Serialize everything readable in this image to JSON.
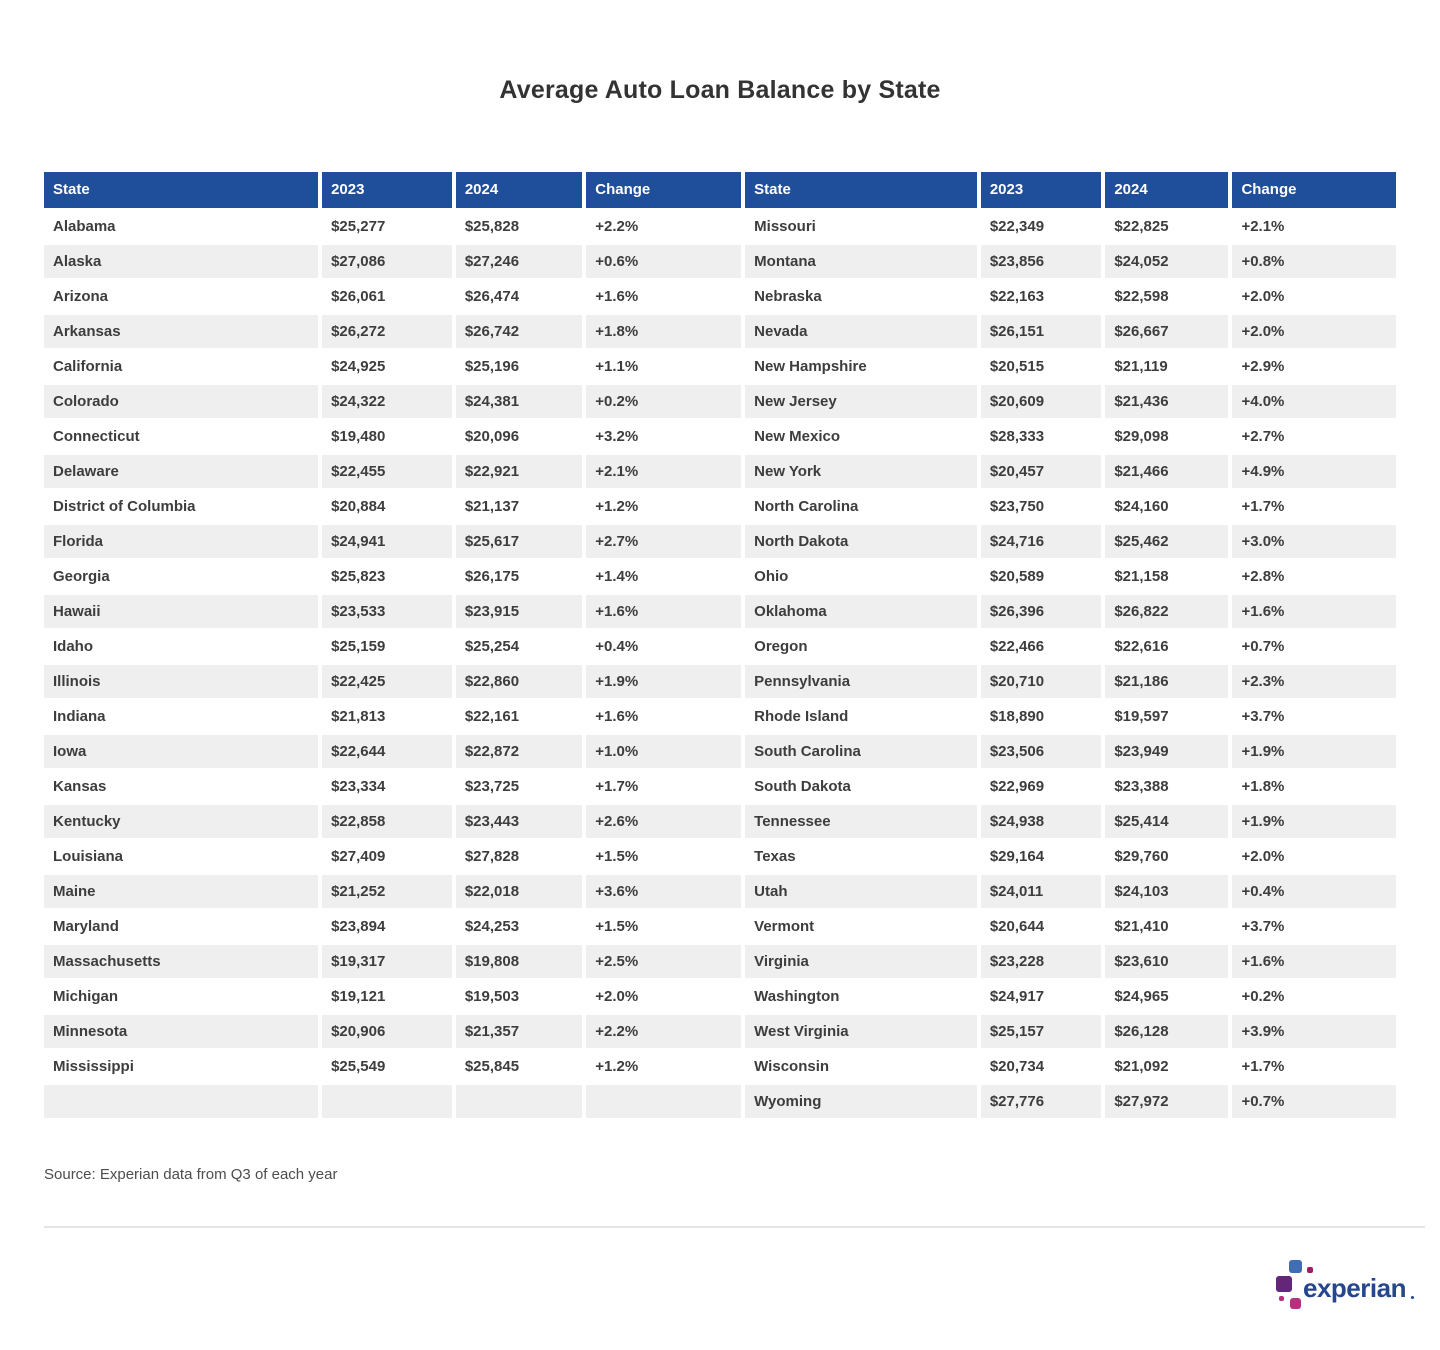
{
  "logo": {
    "wordmark": "experian"
  },
  "colors": {
    "header_bg": "#1F4E9A",
    "header_text": "#FFFFFF",
    "row_alt_bg": "#EFEFEF",
    "body_text": "#3D3D3D",
    "title_text": "#333333",
    "source_text": "#4D4D4D",
    "divider": "#E5E5E5",
    "logo_blue": "#26478D",
    "logo_lightblue": "#406EB3",
    "logo_purple": "#632678",
    "logo_magenta": "#BA2F7D",
    "logo_crimson": "#9E1F63"
  },
  "chart_data": {
    "type": "table",
    "title": "Average Auto Loan Balance by State",
    "source": "Source: Experian data from Q3 of each year",
    "columns": [
      "State",
      "2023",
      "2024",
      "Change"
    ],
    "left_rows": [
      [
        "Alabama",
        "$25,277",
        "$25,828",
        "+2.2%"
      ],
      [
        "Alaska",
        "$27,086",
        "$27,246",
        "+0.6%"
      ],
      [
        "Arizona",
        "$26,061",
        "$26,474",
        "+1.6%"
      ],
      [
        "Arkansas",
        "$26,272",
        "$26,742",
        "+1.8%"
      ],
      [
        "California",
        "$24,925",
        "$25,196",
        "+1.1%"
      ],
      [
        "Colorado",
        "$24,322",
        "$24,381",
        "+0.2%"
      ],
      [
        "Connecticut",
        "$19,480",
        "$20,096",
        "+3.2%"
      ],
      [
        "Delaware",
        "$22,455",
        "$22,921",
        "+2.1%"
      ],
      [
        "District of Columbia",
        "$20,884",
        "$21,137",
        "+1.2%"
      ],
      [
        "Florida",
        "$24,941",
        "$25,617",
        "+2.7%"
      ],
      [
        "Georgia",
        "$25,823",
        "$26,175",
        "+1.4%"
      ],
      [
        "Hawaii",
        "$23,533",
        "$23,915",
        "+1.6%"
      ],
      [
        "Idaho",
        "$25,159",
        "$25,254",
        "+0.4%"
      ],
      [
        "Illinois",
        "$22,425",
        "$22,860",
        "+1.9%"
      ],
      [
        "Indiana",
        "$21,813",
        "$22,161",
        "+1.6%"
      ],
      [
        "Iowa",
        "$22,644",
        "$22,872",
        "+1.0%"
      ],
      [
        "Kansas",
        "$23,334",
        "$23,725",
        "+1.7%"
      ],
      [
        "Kentucky",
        "$22,858",
        "$23,443",
        "+2.6%"
      ],
      [
        "Louisiana",
        "$27,409",
        "$27,828",
        "+1.5%"
      ],
      [
        "Maine",
        "$21,252",
        "$22,018",
        "+3.6%"
      ],
      [
        "Maryland",
        "$23,894",
        "$24,253",
        "+1.5%"
      ],
      [
        "Massachusetts",
        "$19,317",
        "$19,808",
        "+2.5%"
      ],
      [
        "Michigan",
        "$19,121",
        "$19,503",
        "+2.0%"
      ],
      [
        "Minnesota",
        "$20,906",
        "$21,357",
        "+2.2%"
      ],
      [
        "Mississippi",
        "$25,549",
        "$25,845",
        "+1.2%"
      ]
    ],
    "right_rows": [
      [
        "Missouri",
        "$22,349",
        "$22,825",
        "+2.1%"
      ],
      [
        "Montana",
        "$23,856",
        "$24,052",
        "+0.8%"
      ],
      [
        "Nebraska",
        "$22,163",
        "$22,598",
        "+2.0%"
      ],
      [
        "Nevada",
        "$26,151",
        "$26,667",
        "+2.0%"
      ],
      [
        "New Hampshire",
        "$20,515",
        "$21,119",
        "+2.9%"
      ],
      [
        "New Jersey",
        "$20,609",
        "$21,436",
        "+4.0%"
      ],
      [
        "New Mexico",
        "$28,333",
        "$29,098",
        "+2.7%"
      ],
      [
        "New York",
        "$20,457",
        "$21,466",
        "+4.9%"
      ],
      [
        "North Carolina",
        "$23,750",
        "$24,160",
        "+1.7%"
      ],
      [
        "North Dakota",
        "$24,716",
        "$25,462",
        "+3.0%"
      ],
      [
        "Ohio",
        "$20,589",
        "$21,158",
        "+2.8%"
      ],
      [
        "Oklahoma",
        "$26,396",
        "$26,822",
        "+1.6%"
      ],
      [
        "Oregon",
        "$22,466",
        "$22,616",
        "+0.7%"
      ],
      [
        "Pennsylvania",
        "$20,710",
        "$21,186",
        "+2.3%"
      ],
      [
        "Rhode Island",
        "$18,890",
        "$19,597",
        "+3.7%"
      ],
      [
        "South Carolina",
        "$23,506",
        "$23,949",
        "+1.9%"
      ],
      [
        "South Dakota",
        "$22,969",
        "$23,388",
        "+1.8%"
      ],
      [
        "Tennessee",
        "$24,938",
        "$25,414",
        "+1.9%"
      ],
      [
        "Texas",
        "$29,164",
        "$29,760",
        "+2.0%"
      ],
      [
        "Utah",
        "$24,011",
        "$24,103",
        "+0.4%"
      ],
      [
        "Vermont",
        "$20,644",
        "$21,410",
        "+3.7%"
      ],
      [
        "Virginia",
        "$23,228",
        "$23,610",
        "+1.6%"
      ],
      [
        "Washington",
        "$24,917",
        "$24,965",
        "+0.2%"
      ],
      [
        "West Virginia",
        "$25,157",
        "$26,128",
        "+3.9%"
      ],
      [
        "Wisconsin",
        "$20,734",
        "$21,092",
        "+1.7%"
      ],
      [
        "Wyoming",
        "$27,776",
        "$27,972",
        "+0.7%"
      ]
    ]
  }
}
